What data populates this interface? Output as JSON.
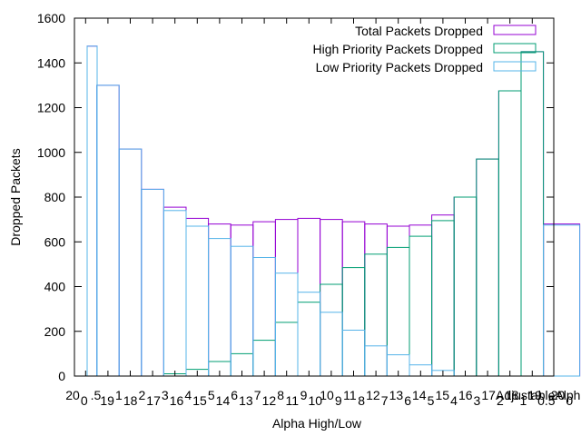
{
  "chart_data": {
    "type": "bar",
    "title": "",
    "xlabel": "Alpha High/Low",
    "ylabel": "Dropped Packets",
    "ylim": [
      0,
      1600
    ],
    "y_ticks": [
      0,
      200,
      400,
      600,
      800,
      1000,
      1200,
      1400,
      1600
    ],
    "x_tick_labels": [
      "20",
      "0",
      ".5",
      "19",
      "1",
      "18",
      "2",
      "17",
      "3",
      "16",
      "4",
      "15",
      "5",
      "14",
      "6",
      "13",
      "7",
      "12",
      "8",
      "11",
      "9",
      "10",
      "10",
      "9",
      "11",
      "8",
      "12",
      "7",
      "13",
      "6",
      "14",
      "5",
      "15",
      "4",
      "16",
      "3",
      "17",
      "2",
      "18",
      "1",
      "19",
      "0.5",
      "20",
      "0",
      "AdjustableAlpha"
    ],
    "grid": false,
    "legend_position": "top-right",
    "series": [
      {
        "name": "Total Packets Dropped",
        "color": "#9400d3",
        "values": [
          1475,
          1300,
          1015,
          835,
          755,
          705,
          680,
          675,
          690,
          700,
          705,
          700,
          690,
          680,
          670,
          675,
          720,
          800,
          970,
          1275,
          1450,
          680
        ]
      },
      {
        "name": "High Priority Packets Dropped",
        "color": "#009e73",
        "values": [
          0,
          0,
          0,
          0,
          10,
          30,
          65,
          100,
          160,
          240,
          330,
          410,
          485,
          545,
          575,
          625,
          695,
          800,
          970,
          1275,
          1450,
          0
        ]
      },
      {
        "name": "Low Priority Packets Dropped",
        "color": "#56b4e9",
        "values": [
          1475,
          1300,
          1015,
          835,
          740,
          670,
          615,
          580,
          530,
          460,
          375,
          285,
          205,
          135,
          95,
          50,
          25,
          0,
          0,
          0,
          0,
          675
        ]
      }
    ]
  }
}
